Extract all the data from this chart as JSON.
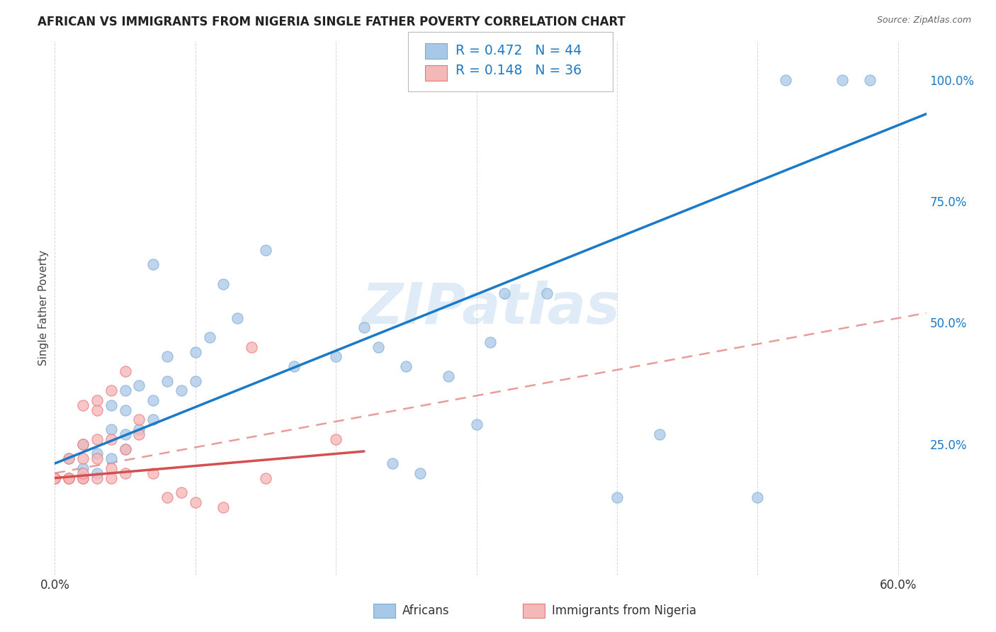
{
  "title": "AFRICAN VS IMMIGRANTS FROM NIGERIA SINGLE FATHER POVERTY CORRELATION CHART",
  "source": "Source: ZipAtlas.com",
  "ylabel": "Single Father Poverty",
  "xlim": [
    0.0,
    0.62
  ],
  "ylim": [
    -0.02,
    1.08
  ],
  "R_african": 0.472,
  "N_african": 44,
  "R_nigeria": 0.148,
  "N_nigeria": 36,
  "african_color": "#a8c8e8",
  "africa_edge_color": "#7aabcf",
  "nigeria_color": "#f5b8b8",
  "nigeria_edge_color": "#e87878",
  "trendline_african_color": "#1a7ac7",
  "trendline_nigeria_solid_color": "#d45050",
  "trendline_nigeria_dash_color": "#e89090",
  "watermark": "ZIPatlas",
  "background_color": "#ffffff",
  "grid_color": "#cccccc",
  "africans_x": [
    0.01,
    0.02,
    0.02,
    0.03,
    0.03,
    0.04,
    0.04,
    0.04,
    0.05,
    0.05,
    0.05,
    0.05,
    0.06,
    0.06,
    0.07,
    0.07,
    0.07,
    0.08,
    0.08,
    0.09,
    0.1,
    0.1,
    0.11,
    0.12,
    0.13,
    0.15,
    0.17,
    0.2,
    0.22,
    0.23,
    0.24,
    0.25,
    0.26,
    0.28,
    0.3,
    0.31,
    0.32,
    0.35,
    0.4,
    0.43,
    0.5,
    0.52,
    0.56,
    0.58
  ],
  "africans_y": [
    0.22,
    0.2,
    0.25,
    0.19,
    0.23,
    0.22,
    0.28,
    0.33,
    0.24,
    0.27,
    0.32,
    0.36,
    0.28,
    0.37,
    0.3,
    0.34,
    0.62,
    0.38,
    0.43,
    0.36,
    0.44,
    0.38,
    0.47,
    0.58,
    0.51,
    0.65,
    0.41,
    0.43,
    0.49,
    0.45,
    0.21,
    0.41,
    0.19,
    0.39,
    0.29,
    0.46,
    0.56,
    0.56,
    0.14,
    0.27,
    0.14,
    1.0,
    1.0,
    1.0
  ],
  "nigeria_x": [
    0.0,
    0.0,
    0.0,
    0.0,
    0.01,
    0.01,
    0.01,
    0.01,
    0.02,
    0.02,
    0.02,
    0.02,
    0.02,
    0.02,
    0.03,
    0.03,
    0.03,
    0.03,
    0.03,
    0.04,
    0.04,
    0.04,
    0.04,
    0.05,
    0.05,
    0.05,
    0.06,
    0.06,
    0.07,
    0.08,
    0.09,
    0.1,
    0.12,
    0.14,
    0.15,
    0.2
  ],
  "nigeria_y": [
    0.18,
    0.18,
    0.18,
    0.18,
    0.18,
    0.18,
    0.18,
    0.22,
    0.18,
    0.18,
    0.19,
    0.22,
    0.25,
    0.33,
    0.18,
    0.22,
    0.26,
    0.32,
    0.34,
    0.18,
    0.2,
    0.26,
    0.36,
    0.19,
    0.24,
    0.4,
    0.27,
    0.3,
    0.19,
    0.14,
    0.15,
    0.13,
    0.12,
    0.45,
    0.18,
    0.26
  ],
  "trendline_african": [
    0.0,
    0.62,
    0.21,
    0.93
  ],
  "trendline_nigeria_solid": [
    0.0,
    0.18,
    0.22,
    0.235
  ],
  "trendline_nigeria_dash": [
    0.0,
    0.62,
    0.19,
    0.52
  ]
}
